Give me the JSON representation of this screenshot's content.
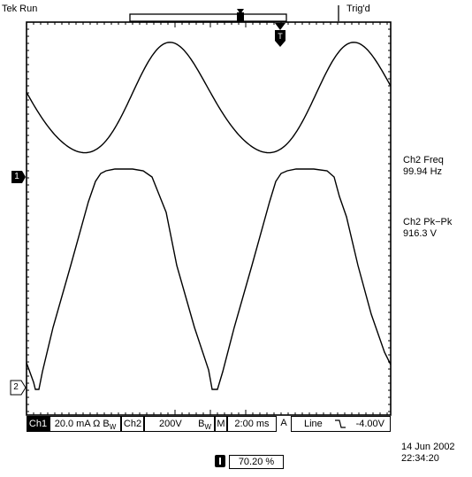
{
  "header": {
    "run_status": "Tek Run",
    "trigger_status": "Trig'd"
  },
  "markers": {
    "ch1": "1",
    "ch2": "2",
    "trigger": "T"
  },
  "measurements": [
    {
      "label": "Ch2 Freq",
      "value": "99.94 Hz"
    },
    {
      "label": "Ch2 Pk−Pk",
      "value": "916.3 V"
    }
  ],
  "status_bar": {
    "ch1_label": "Ch1",
    "ch1_scale": "20.0 mA Ω B",
    "ch1_bw": "W",
    "ch2_label": "Ch2",
    "ch2_scale": "200V",
    "ch2_bw_b": "B",
    "ch2_bw_w": "W",
    "timebase_mode": "M",
    "timebase": "2:00 ms",
    "trigger_mode": "A",
    "trigger_source": "Line",
    "trigger_slope_icon": "falling-edge-icon",
    "trigger_level": "-4.00V"
  },
  "trigger_position": {
    "value": "70.20 %"
  },
  "datetime": {
    "date": "14 Jun 2002",
    "time": "22:34:20"
  }
}
